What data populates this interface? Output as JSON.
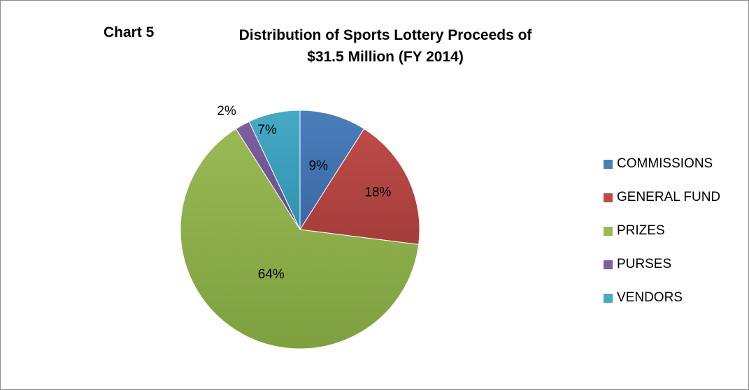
{
  "chart_data": {
    "type": "pie",
    "title_label": "Chart 5",
    "title": "Distribution of Sports Lottery Proceeds of",
    "subtitle": "$31.5 Million (FY 2014)",
    "legend_position": "right",
    "categories": [
      "COMMISSIONS",
      "GENERAL FUND",
      "PRIZES",
      "PURSES",
      "VENDORS"
    ],
    "values": [
      9,
      18,
      64,
      2,
      7
    ],
    "labels": [
      "9%",
      "18%",
      "64%",
      "2%",
      "7%"
    ],
    "colors": [
      "#4a7ebb",
      "#be4b48",
      "#98b954",
      "#7d60a0",
      "#46aac5"
    ],
    "colors_dark": [
      "#3a68a4",
      "#a43d3a",
      "#7fa03f",
      "#654a88",
      "#2f93b0"
    ]
  }
}
